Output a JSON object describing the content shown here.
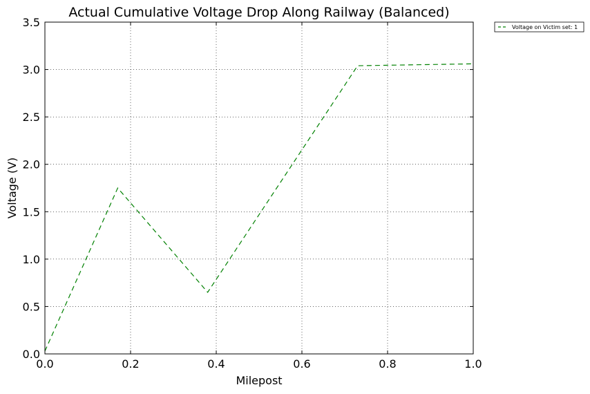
{
  "chart_data": {
    "type": "line",
    "title": "Actual Cumulative Voltage Drop Along Railway (Balanced)",
    "xlabel": "Milepost",
    "ylabel": "Voltage  (V)",
    "xlim": [
      0.0,
      1.0
    ],
    "ylim": [
      0.0,
      3.5
    ],
    "x_ticks": [
      "0.0",
      "0.2",
      "0.4",
      "0.6",
      "0.8",
      "1.0"
    ],
    "y_ticks": [
      "0.0",
      "0.5",
      "1.0",
      "1.5",
      "2.0",
      "2.5",
      "3.0",
      "3.5"
    ],
    "grid": true,
    "legend_position": "outside-top-right",
    "series": [
      {
        "name": "Voltage on Victim set: 1",
        "color": "#008000",
        "line_style": "dashed",
        "x": [
          0.0,
          0.17,
          0.38,
          0.73,
          1.0
        ],
        "y": [
          0.03,
          1.75,
          0.65,
          3.04,
          3.06
        ]
      }
    ]
  }
}
